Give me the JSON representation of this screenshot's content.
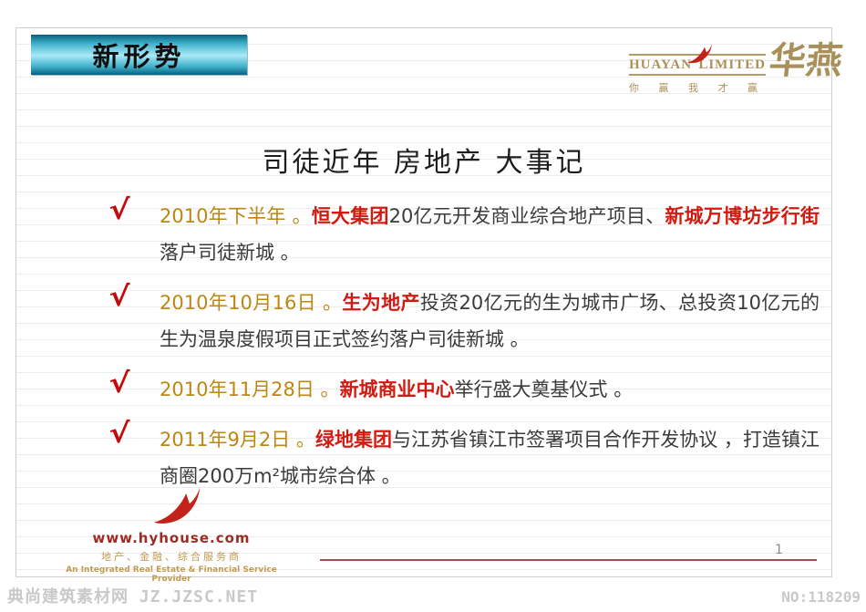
{
  "header": {
    "tab_label": "新形势"
  },
  "logo": {
    "name_left": "HUAYAN",
    "name_right": "LIMITED",
    "cn_name": "华燕",
    "tagline": "你 赢 我 才 赢",
    "bird_icon": "red-swoosh-bird",
    "gold_color": "#a8905a",
    "red_color": "#c2221a"
  },
  "title": "司徒近年 房地产 大事记",
  "bullets": [
    {
      "check": "√",
      "segments": [
        {
          "t": "2010年下半年 。",
          "c": "gold"
        },
        {
          "t": "恒大集团",
          "c": "red"
        },
        {
          "t": "20亿元开发商业综合地产项目、",
          "c": "dark"
        },
        {
          "t": "新城万博坊步行街",
          "c": "red"
        },
        {
          "t": "落户司徒新城 。",
          "c": "dark"
        }
      ]
    },
    {
      "check": "√",
      "segments": [
        {
          "t": "2010年10月16日 。",
          "c": "gold"
        },
        {
          "t": "生为地产",
          "c": "red"
        },
        {
          "t": "投资20亿元的生为城市广场、总投资10亿元的生为温泉度假项目正式签约落户司徒新城 。",
          "c": "dark"
        }
      ]
    },
    {
      "check": "√",
      "segments": [
        {
          "t": "2010年11月28日 。",
          "c": "gold"
        },
        {
          "t": "新城商业中心",
          "c": "red"
        },
        {
          "t": "举行盛大奠基仪式 。",
          "c": "dark"
        }
      ]
    },
    {
      "check": "√",
      "segments": [
        {
          "t": "2011年9月2日 。",
          "c": "gold"
        },
        {
          "t": "绿地集团",
          "c": "red"
        },
        {
          "t": "与江苏省镇江市签署项目合作开发协议 ，打造镇江商圈200万m²城市综合体 。",
          "c": "dark"
        }
      ]
    }
  ],
  "footer": {
    "site": "www.hyhouse.com",
    "line_cn": "地产、金融、综合服务商",
    "line_en": "An Integrated Real Estate & Financial Service Provider"
  },
  "page_number": "1",
  "watermark": {
    "left": "典尚建筑素材网 JZ.JZSC.NET",
    "right": "NO:118209"
  },
  "colors": {
    "header_gradient_dark": "#07607e",
    "header_gradient_light": "#a9eaf7",
    "date_gold": "#bd8712",
    "highlight_red": "#d31a10",
    "body_text": "#3a3a3a",
    "divider_maroon": "#9c4f55",
    "watermark_gray": "#c9c9c9",
    "ruled_line": "#ececec"
  }
}
